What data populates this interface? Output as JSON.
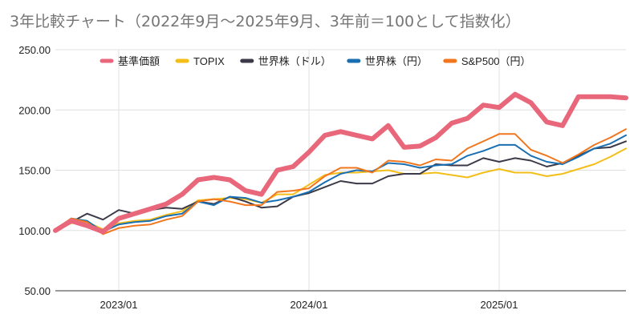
{
  "title": "3年比較チャート（2022年9月～2025年9月、3年前＝100として指数化）",
  "colors": {
    "grid": "#e0e0e0",
    "axis_line": "#333333",
    "tick_text": "#222222",
    "title": "#757575"
  },
  "chart_data": {
    "type": "line",
    "title": "3年比較チャート（2022年9月～2025年9月、3年前＝100として指数化）",
    "xlabel": "",
    "ylabel": "",
    "x_range": [
      "2022-09",
      "2025-09"
    ],
    "ylim": [
      50,
      250
    ],
    "yticks": [
      "50.00",
      "100.00",
      "150.00",
      "200.00",
      "250.00"
    ],
    "xticks": [
      {
        "date": "2023-01",
        "label": "2023/01"
      },
      {
        "date": "2024-01",
        "label": "2024/01"
      },
      {
        "date": "2025-01",
        "label": "2025/01"
      }
    ],
    "grid": true,
    "legend_position": "top",
    "x": [
      "2022-09",
      "2022-10",
      "2022-11",
      "2022-12",
      "2023-01",
      "2023-02",
      "2023-03",
      "2023-04",
      "2023-05",
      "2023-06",
      "2023-07",
      "2023-08",
      "2023-09",
      "2023-10",
      "2023-11",
      "2023-12",
      "2024-01",
      "2024-02",
      "2024-03",
      "2024-04",
      "2024-05",
      "2024-06",
      "2024-07",
      "2024-08",
      "2024-09",
      "2024-10",
      "2024-11",
      "2024-12",
      "2025-01",
      "2025-02",
      "2025-03",
      "2025-04",
      "2025-05",
      "2025-06",
      "2025-07",
      "2025-08",
      "2025-09"
    ],
    "series": [
      {
        "name": "基準価額",
        "color": "#e8677a",
        "width": 6,
        "values": [
          100,
          108,
          104,
          99,
          110,
          114,
          118,
          122,
          130,
          142,
          144,
          142,
          133,
          130,
          150,
          153,
          165,
          179,
          182,
          179,
          176,
          187,
          169,
          170,
          177,
          189,
          193,
          204,
          202,
          213,
          206,
          190,
          187,
          211,
          211,
          211,
          210
        ]
      },
      {
        "name": "TOPIX",
        "color": "#f4be18",
        "width": 2,
        "values": [
          100,
          106,
          107,
          101,
          106,
          108,
          109,
          113,
          116,
          125,
          126,
          127,
          126,
          123,
          130,
          130,
          138,
          146,
          148,
          148,
          149,
          150,
          147,
          147,
          148,
          146,
          144,
          148,
          151,
          148,
          148,
          145,
          147,
          151,
          155,
          161,
          168
        ]
      },
      {
        "name": "世界株（ドル）",
        "color": "#3c3a48",
        "width": 2,
        "values": [
          101,
          107,
          114,
          109,
          117,
          114,
          117,
          119,
          118,
          124,
          122,
          128,
          124,
          119,
          120,
          128,
          131,
          136,
          141,
          139,
          139,
          145,
          147,
          147,
          155,
          154,
          154,
          160,
          157,
          160,
          158,
          153,
          156,
          162,
          168,
          169,
          174
        ]
      },
      {
        "name": "世界株（円）",
        "color": "#1a6fb2",
        "width": 2,
        "values": [
          100,
          110,
          108,
          99,
          105,
          107,
          108,
          112,
          114,
          124,
          121,
          128,
          127,
          123,
          125,
          128,
          132,
          140,
          147,
          150,
          149,
          156,
          155,
          152,
          154,
          155,
          162,
          166,
          171,
          171,
          162,
          157,
          155,
          161,
          168,
          172,
          179
        ]
      },
      {
        "name": "S&P500（円）",
        "color": "#f1761d",
        "width": 2,
        "values": [
          101,
          110,
          107,
          97,
          102,
          104,
          105,
          109,
          112,
          124,
          126,
          124,
          121,
          121,
          132,
          133,
          135,
          145,
          152,
          152,
          148,
          158,
          157,
          154,
          159,
          158,
          168,
          174,
          180,
          180,
          167,
          162,
          156,
          163,
          171,
          177,
          184
        ]
      }
    ]
  }
}
